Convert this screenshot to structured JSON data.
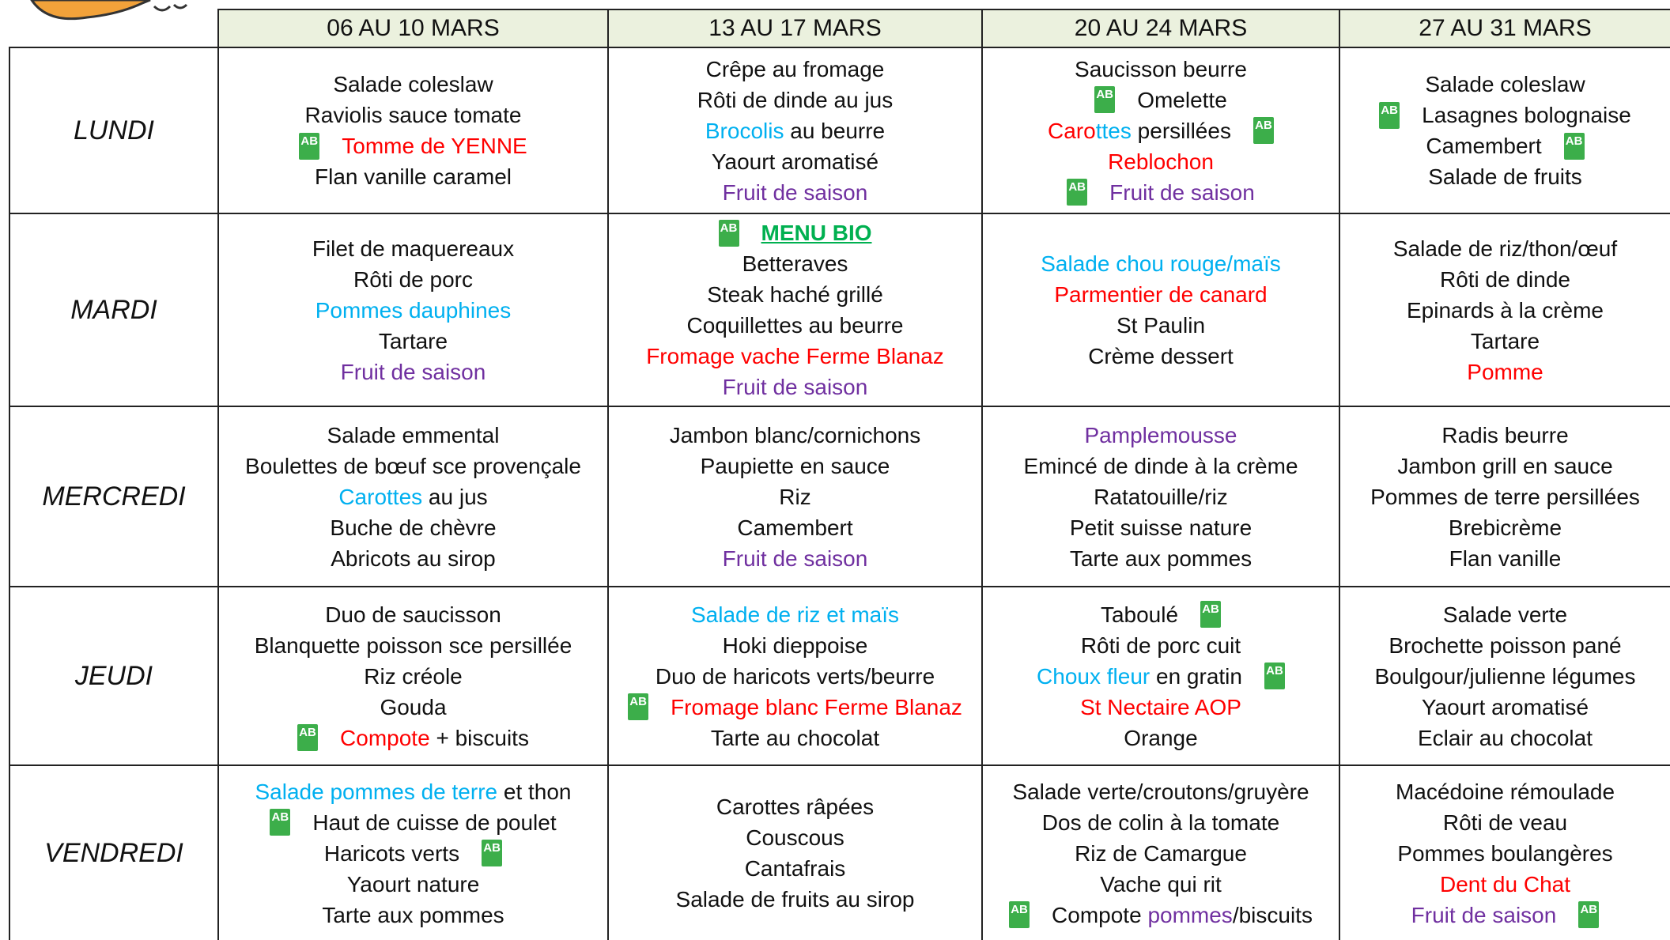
{
  "menu": {
    "weeks": [
      "06 AU 10 MARS",
      "13 AU 17 MARS",
      "20 AU 24 MARS",
      "27 AU 31 MARS"
    ],
    "rows": [
      {
        "day": "LUNDI",
        "cells": [
          [
            "Salade coleslaw",
            "Raviolis sauce tomate",
            [
              {
                "text": "Tomme de YENNE",
                "color": "#ff0000"
              }
            ],
            "Flan vanille caramel"
          ],
          [
            "Crêpe au fromage",
            "Rôti de dinde au jus",
            [
              {
                "text": "Brocolis",
                "color": "#00b0f0"
              },
              {
                "text": " au beurre"
              }
            ],
            "Yaourt aromatisé",
            [
              {
                "text": "Fruit de saison",
                "color": "#7030a0"
              }
            ]
          ],
          [
            "Saucisson beurre",
            "Omelette",
            [
              {
                "text": "Caro",
                "color": "#ff0000"
              },
              {
                "text": "ttes",
                "color": "#00b0f0"
              },
              {
                "text": " persillées"
              }
            ],
            [
              {
                "text": "Reblochon",
                "color": "#ff0000"
              }
            ],
            [
              {
                "text": "Fruit de saison",
                "color": "#7030a0"
              }
            ]
          ],
          [
            "Salade coleslaw",
            "Lasagnes bolognaise",
            "Camembert",
            "Salade de fruits"
          ]
        ]
      },
      {
        "day": "MARDI",
        "cells": [
          [
            "Filet de maquereaux",
            "Rôti de porc",
            [
              {
                "text": "Pommes dauphines",
                "color": "#00b0f0"
              }
            ],
            "Tartare",
            [
              {
                "text": "Fruit de saison",
                "color": "#7030a0"
              }
            ]
          ],
          [
            [
              {
                "text": "MENU BIO",
                "color": "#00b050",
                "bold": true,
                "underline": true
              }
            ],
            "Betteraves",
            "Steak haché grillé",
            "Coquillettes au beurre",
            [
              {
                "text": "Fromage vache Ferme Blanaz",
                "color": "#ff0000"
              }
            ],
            [
              {
                "text": "Fruit de saison",
                "color": "#7030a0"
              }
            ]
          ],
          [
            [
              {
                "text": "Salade chou rouge/maïs",
                "color": "#00b0f0"
              }
            ],
            [
              {
                "text": "Parmentier de canard",
                "color": "#ff0000"
              }
            ],
            "St Paulin",
            "Crème dessert"
          ],
          [
            "Salade de riz/thon/œuf",
            "Rôti de dinde",
            "Epinards à la crème",
            "Tartare",
            [
              {
                "text": "Pomme",
                "color": "#ff0000"
              }
            ]
          ]
        ]
      },
      {
        "day": "MERCREDI",
        "cells": [
          [
            "Salade emmental",
            "Boulettes de bœuf sce provençale",
            [
              {
                "text": "Carottes",
                "color": "#00b0f0"
              },
              {
                "text": " au jus"
              }
            ],
            "Buche de chèvre",
            "Abricots au sirop"
          ],
          [
            "Jambon blanc/cornichons",
            "Paupiette en sauce",
            "Riz",
            "Camembert",
            [
              {
                "text": "Fruit de saison",
                "color": "#7030a0"
              }
            ]
          ],
          [
            [
              {
                "text": "Pamplemousse",
                "color": "#7030a0"
              }
            ],
            "Emincé de dinde à la crème",
            "Ratatouille/riz",
            "Petit suisse nature",
            "Tarte aux pommes"
          ],
          [
            "Radis beurre",
            "Jambon grill en sauce",
            "Pommes de terre persillées",
            "Brebicrème",
            "Flan vanille"
          ]
        ]
      },
      {
        "day": "JEUDI",
        "cells": [
          [
            "Duo de saucisson",
            "Blanquette poisson sce persillée",
            "Riz créole",
            "Gouda",
            [
              {
                "text": "Compote",
                "color": "#ff0000"
              },
              {
                "text": " + biscuits"
              }
            ]
          ],
          [
            [
              {
                "text": "Salade de riz et maïs",
                "color": "#00b0f0"
              }
            ],
            "Hoki dieppoise",
            "Duo de haricots verts/beurre",
            [
              {
                "text": "Fromage blanc Ferme Blanaz",
                "color": "#ff0000"
              }
            ],
            "Tarte au chocolat"
          ],
          [
            "Taboulé",
            "Rôti de porc cuit",
            [
              {
                "text": "Choux fleur",
                "color": "#00b0f0"
              },
              {
                "text": " en gratin"
              }
            ],
            [
              {
                "text": "St Nectaire AOP",
                "color": "#ff0000"
              }
            ],
            "Orange"
          ],
          [
            "Salade verte",
            "Brochette poisson pané",
            "Boulgour/julienne légumes",
            "Yaourt aromatisé",
            "Eclair au chocolat"
          ]
        ]
      },
      {
        "day": "VENDREDI",
        "cells": [
          [
            [
              {
                "text": "Salade pommes de terre",
                "color": "#00b0f0"
              },
              {
                "text": " et thon"
              }
            ],
            "Haut de cuisse de poulet",
            "Haricots verts",
            "Yaourt nature",
            "Tarte aux pommes"
          ],
          [
            "Carottes râpées",
            "Couscous",
            "Cantafrais",
            "Salade de fruits au sirop"
          ],
          [
            "Salade verte/croutons/gruyère",
            "Dos de colin à la tomate",
            "Riz de Camargue",
            "Vache qui rit",
            [
              {
                "text": "Compote "
              },
              {
                "text": "pommes",
                "color": "#7030a0"
              },
              {
                "text": "/biscuits"
              }
            ]
          ],
          [
            "Macédoine rémoulade",
            "Rôti de veau",
            "Pommes boulangères",
            [
              {
                "text": "Dent du Chat",
                "color": "#ff0000"
              }
            ],
            [
              {
                "text": "Fruit de saison",
                "color": "#7030a0"
              }
            ]
          ]
        ]
      }
    ]
  }
}
